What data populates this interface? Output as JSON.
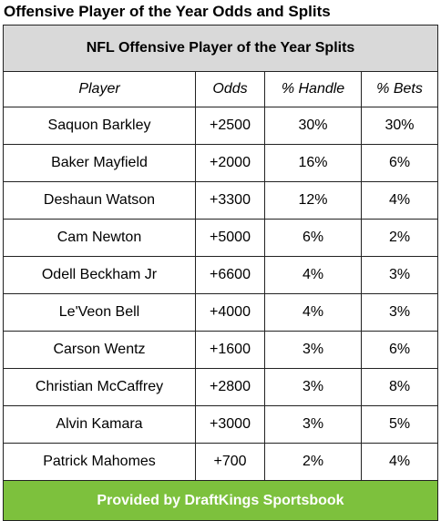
{
  "page": {
    "title": "Offensive Player of the Year Odds and Splits"
  },
  "table": {
    "caption": "NFL Offensive Player of the Year Splits",
    "columns": [
      "Player",
      "Odds",
      "% Handle",
      "% Bets"
    ],
    "rows": [
      [
        "Saquon Barkley",
        "+2500",
        "30%",
        "30%"
      ],
      [
        "Baker Mayfield",
        "+2000",
        "16%",
        "6%"
      ],
      [
        "Deshaun Watson",
        "+3300",
        "12%",
        "4%"
      ],
      [
        "Cam Newton",
        "+5000",
        "6%",
        "2%"
      ],
      [
        "Odell Beckham Jr",
        "+6600",
        "4%",
        "3%"
      ],
      [
        "Le'Veon Bell",
        "+4000",
        "4%",
        "3%"
      ],
      [
        "Carson Wentz",
        "+1600",
        "3%",
        "6%"
      ],
      [
        "Christian McCaffrey",
        "+2800",
        "3%",
        "8%"
      ],
      [
        "Alvin Kamara",
        "+3000",
        "3%",
        "5%"
      ],
      [
        "Patrick Mahomes",
        "+700",
        "2%",
        "4%"
      ]
    ],
    "footer": "Provided by DraftKings Sportsbook"
  },
  "colors": {
    "caption_bg": "#d9d9d9",
    "footer_bg": "#7dc13d",
    "footer_text": "#ffffff",
    "border": "#222222"
  }
}
